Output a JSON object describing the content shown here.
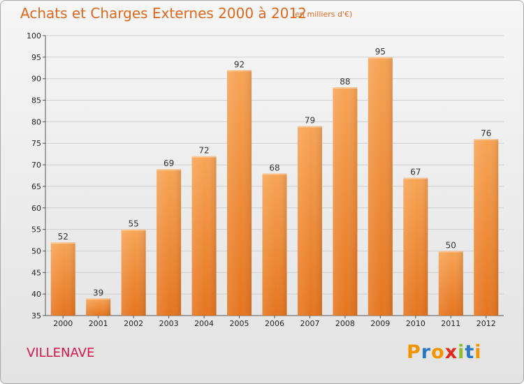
{
  "header": {
    "title": "Achats et Charges Externes 2000 à 2012",
    "unit": "(en milliers d'€)"
  },
  "footer": {
    "place": "VILLENAVE",
    "brand": [
      "P",
      "r",
      "o",
      "x",
      "i",
      "t",
      "i"
    ],
    "brand_colors": [
      "#f29400",
      "#2b77c8",
      "#f29400",
      "#e5281c",
      "#8cbd2a",
      "#2b77c8",
      "#f29400"
    ]
  },
  "chart_data": {
    "type": "bar",
    "title": "Achats et Charges Externes 2000 à 2012",
    "subtitle": "(en milliers d'€)",
    "categories": [
      "2000",
      "2001",
      "2002",
      "2003",
      "2004",
      "2005",
      "2006",
      "2007",
      "2008",
      "2009",
      "2010",
      "2011",
      "2012"
    ],
    "values": [
      52,
      39,
      55,
      69,
      72,
      92,
      68,
      79,
      88,
      95,
      67,
      50,
      76
    ],
    "ylim": [
      35,
      100
    ],
    "yticks": [
      35,
      40,
      45,
      50,
      55,
      60,
      65,
      70,
      75,
      80,
      85,
      90,
      95,
      100
    ],
    "grid": true,
    "bar_color_top": "#f7a455",
    "bar_color_bottom": "#e5751f"
  }
}
